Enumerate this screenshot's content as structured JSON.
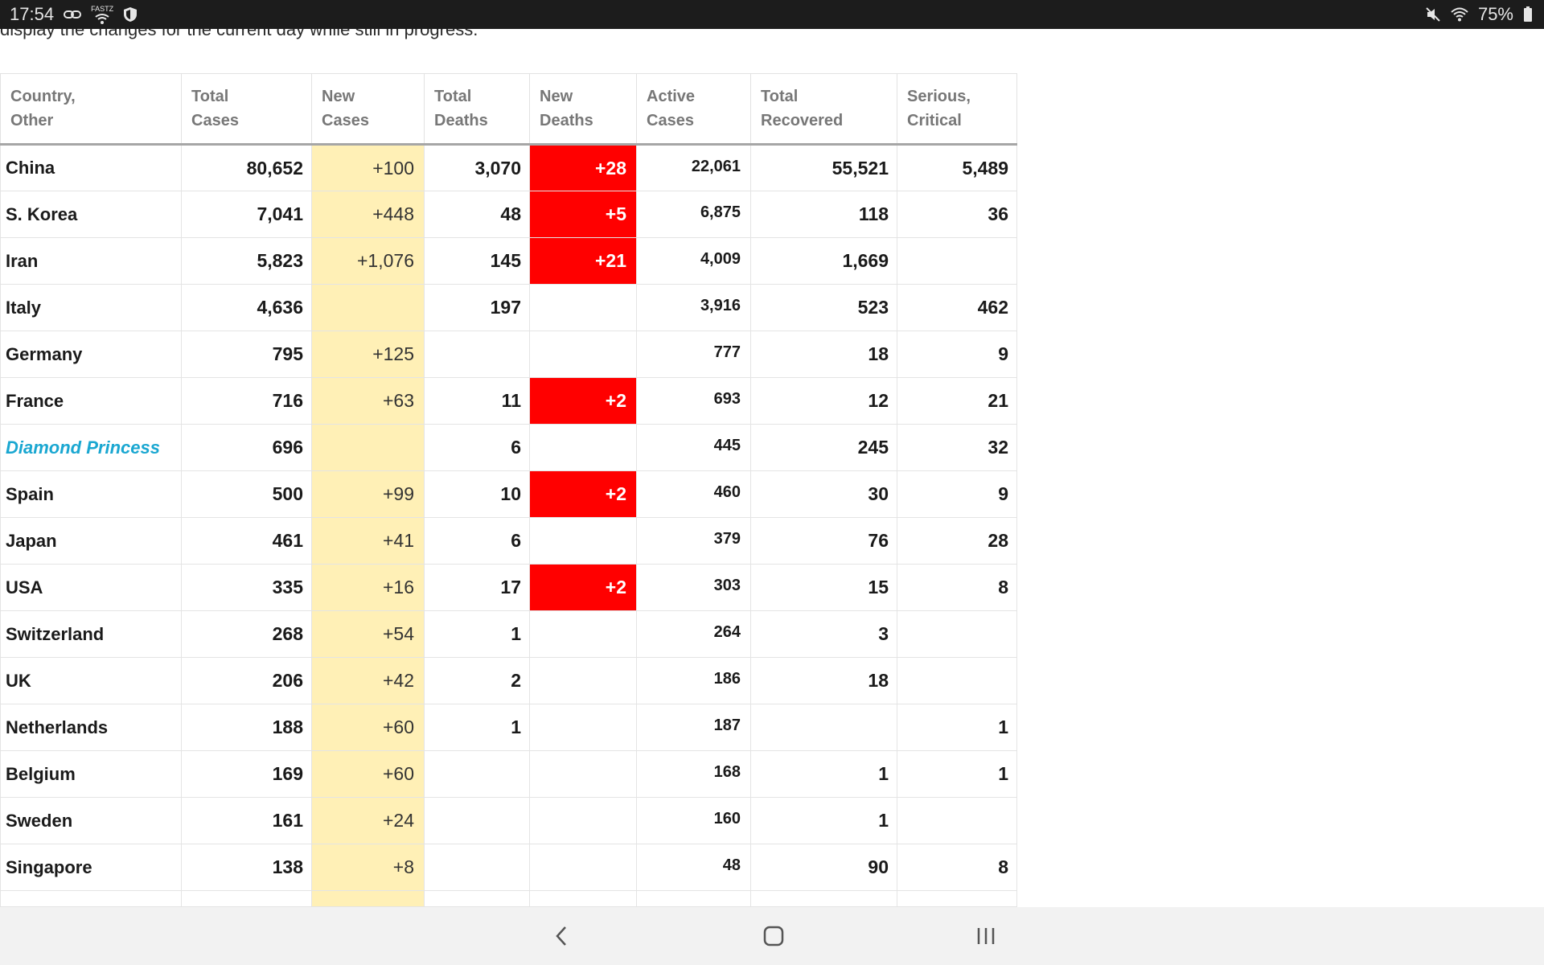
{
  "status_bar": {
    "time": "17:54",
    "left_icons": [
      "link-icon",
      "fastz-icon",
      "shield-icon"
    ],
    "fastz_label": "FASTZ",
    "right_icons": [
      "mute-icon",
      "wifi-icon",
      "battery-icon"
    ],
    "battery": "75%"
  },
  "page": {
    "intro_text": "display the changes for the current day while still in progress."
  },
  "table": {
    "headers": [
      "Country,\nOther",
      "Total\nCases",
      "New\nCases",
      "Total\nDeaths",
      "New\nDeaths",
      "Active\nCases",
      "Total\nRecovered",
      "Serious,\nCritical"
    ],
    "rows": [
      {
        "country": "China",
        "total_cases": "80,652",
        "new_cases": "+100",
        "total_deaths": "3,070",
        "new_deaths": "+28",
        "active_cases": "22,061",
        "total_recovered": "55,521",
        "serious_critical": "5,489"
      },
      {
        "country": "S. Korea",
        "total_cases": "7,041",
        "new_cases": "+448",
        "total_deaths": "48",
        "new_deaths": "+5",
        "active_cases": "6,875",
        "total_recovered": "118",
        "serious_critical": "36"
      },
      {
        "country": "Iran",
        "total_cases": "5,823",
        "new_cases": "+1,076",
        "total_deaths": "145",
        "new_deaths": "+21",
        "active_cases": "4,009",
        "total_recovered": "1,669",
        "serious_critical": ""
      },
      {
        "country": "Italy",
        "total_cases": "4,636",
        "new_cases": "",
        "total_deaths": "197",
        "new_deaths": "",
        "active_cases": "3,916",
        "total_recovered": "523",
        "serious_critical": "462"
      },
      {
        "country": "Germany",
        "total_cases": "795",
        "new_cases": "+125",
        "total_deaths": "",
        "new_deaths": "",
        "active_cases": "777",
        "total_recovered": "18",
        "serious_critical": "9"
      },
      {
        "country": "France",
        "total_cases": "716",
        "new_cases": "+63",
        "total_deaths": "11",
        "new_deaths": "+2",
        "active_cases": "693",
        "total_recovered": "12",
        "serious_critical": "21"
      },
      {
        "country": "Diamond Princess",
        "total_cases": "696",
        "new_cases": "",
        "total_deaths": "6",
        "new_deaths": "",
        "active_cases": "445",
        "total_recovered": "245",
        "serious_critical": "32"
      },
      {
        "country": "Spain",
        "total_cases": "500",
        "new_cases": "+99",
        "total_deaths": "10",
        "new_deaths": "+2",
        "active_cases": "460",
        "total_recovered": "30",
        "serious_critical": "9"
      },
      {
        "country": "Japan",
        "total_cases": "461",
        "new_cases": "+41",
        "total_deaths": "6",
        "new_deaths": "",
        "active_cases": "379",
        "total_recovered": "76",
        "serious_critical": "28"
      },
      {
        "country": "USA",
        "total_cases": "335",
        "new_cases": "+16",
        "total_deaths": "17",
        "new_deaths": "+2",
        "active_cases": "303",
        "total_recovered": "15",
        "serious_critical": "8"
      },
      {
        "country": "Switzerland",
        "total_cases": "268",
        "new_cases": "+54",
        "total_deaths": "1",
        "new_deaths": "",
        "active_cases": "264",
        "total_recovered": "3",
        "serious_critical": ""
      },
      {
        "country": "UK",
        "total_cases": "206",
        "new_cases": "+42",
        "total_deaths": "2",
        "new_deaths": "",
        "active_cases": "186",
        "total_recovered": "18",
        "serious_critical": ""
      },
      {
        "country": "Netherlands",
        "total_cases": "188",
        "new_cases": "+60",
        "total_deaths": "1",
        "new_deaths": "",
        "active_cases": "187",
        "total_recovered": "",
        "serious_critical": "1"
      },
      {
        "country": "Belgium",
        "total_cases": "169",
        "new_cases": "+60",
        "total_deaths": "",
        "new_deaths": "",
        "active_cases": "168",
        "total_recovered": "1",
        "serious_critical": "1"
      },
      {
        "country": "Sweden",
        "total_cases": "161",
        "new_cases": "+24",
        "total_deaths": "",
        "new_deaths": "",
        "active_cases": "160",
        "total_recovered": "1",
        "serious_critical": ""
      },
      {
        "country": "Singapore",
        "total_cases": "138",
        "new_cases": "+8",
        "total_deaths": "",
        "new_deaths": "",
        "active_cases": "48",
        "total_recovered": "90",
        "serious_critical": "8"
      }
    ],
    "special_countries": [
      "Diamond Princess"
    ],
    "colors": {
      "new_cases_bg": "#fff0b6",
      "new_deaths_bg": "#ff0000",
      "special_link": "#1aa7d1",
      "header_text": "#777777"
    }
  },
  "nav_bar": {
    "buttons": [
      "back-icon",
      "home-icon",
      "recents-icon"
    ]
  }
}
